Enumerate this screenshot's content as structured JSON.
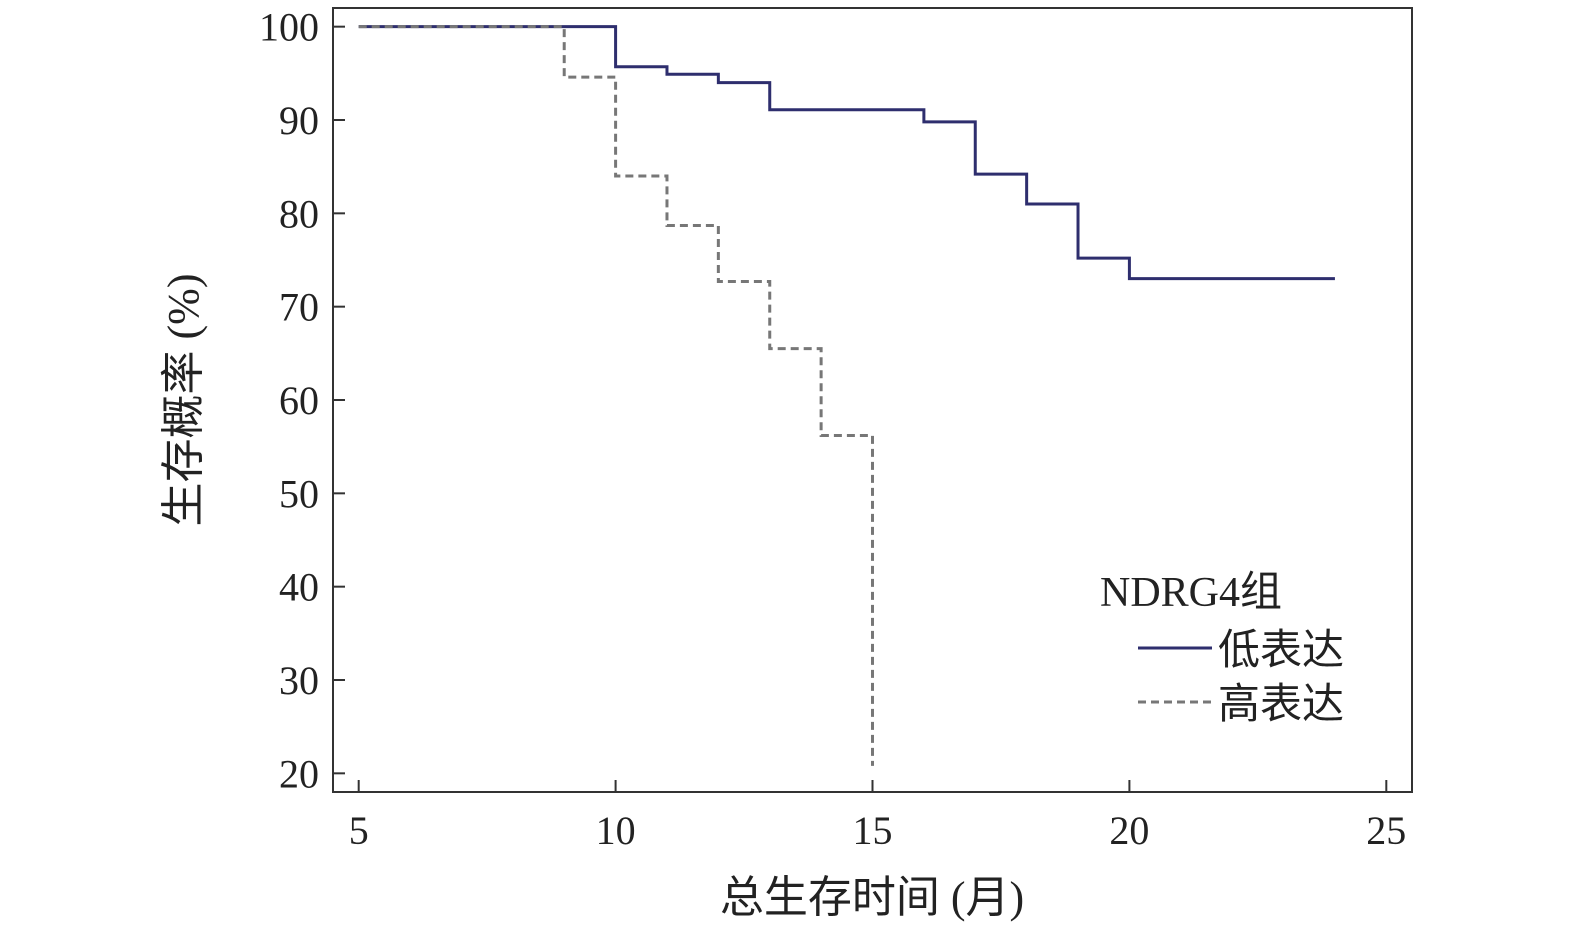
{
  "chart_data": {
    "type": "line",
    "step": true,
    "xlabel": "总生存时间 (月)",
    "ylabel": "生存概率 (%)",
    "xlim": [
      4.5,
      25.5
    ],
    "ylim": [
      18,
      102
    ],
    "xticks": [
      5,
      10,
      15,
      20,
      25
    ],
    "yticks": [
      20,
      30,
      40,
      50,
      60,
      70,
      80,
      90,
      100
    ],
    "grid": false,
    "legend": {
      "title": "NDRG4组",
      "placement": "bottom-right",
      "entries": [
        "低表达",
        "高表达"
      ]
    },
    "series": [
      {
        "name": "低表达",
        "style": "solid",
        "color": "#2e2e6e",
        "x": [
          5,
          10,
          11,
          12,
          13,
          16,
          17,
          18,
          19,
          20,
          24
        ],
        "y": [
          100,
          95.7,
          94.9,
          94.0,
          91.1,
          89.8,
          84.2,
          81.0,
          75.2,
          73.0,
          73.0
        ]
      },
      {
        "name": "高表达",
        "style": "dashed",
        "color": "#777777",
        "x": [
          5,
          9,
          10,
          11,
          12,
          13,
          14,
          15
        ],
        "y": [
          100,
          94.6,
          84.0,
          78.7,
          72.7,
          65.5,
          56.2,
          20.8
        ]
      }
    ]
  }
}
